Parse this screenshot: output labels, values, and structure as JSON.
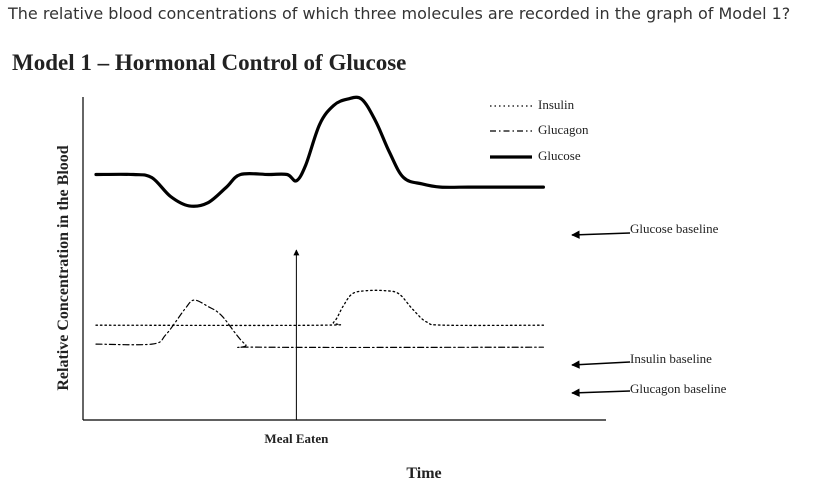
{
  "question": "The relative blood concentrations of which three molecules are recorded in the graph of Model 1?",
  "model_title": "Model 1 – Hormonal Control of Glucose",
  "chart_data": {
    "type": "line",
    "title": "",
    "xlabel": "Time",
    "ylabel": "Relative Concentration in the Blood",
    "legend_position": "top-right",
    "legend": [
      {
        "name": "Insulin",
        "style": "dotted"
      },
      {
        "name": "Glucagon",
        "style": "dash-dot"
      },
      {
        "name": "Glucose",
        "style": "solid-thick"
      }
    ],
    "annotations": {
      "meal": "Meal Eaten",
      "glucose_baseline": "Glucose baseline",
      "insulin_baseline": "Insulin baseline",
      "glucagon_baseline": "Glucagon baseline"
    },
    "xlim": [
      0,
      100
    ],
    "ylim": [
      0,
      100
    ],
    "meal_x": 43,
    "series": [
      {
        "name": "Glucose",
        "style": "solid-thick",
        "x": [
          0,
          8,
          12,
          16,
          20,
          24,
          28,
          31,
          37,
          41,
          43,
          45,
          48,
          51,
          54,
          57,
          60,
          63,
          66,
          70,
          74,
          80,
          86,
          96
        ],
        "y": [
          75,
          75,
          74,
          68,
          65,
          66,
          71,
          75,
          75,
          75,
          73,
          78,
          91,
          97,
          99,
          99,
          92,
          82,
          74,
          72,
          71,
          71,
          71,
          71
        ]
      },
      {
        "name": "Insulin",
        "style": "dotted",
        "x": [
          0,
          48,
          51,
          53,
          55,
          58,
          62,
          65,
          68,
          71,
          75,
          96
        ],
        "y": [
          27,
          27,
          28,
          33,
          37,
          38,
          38,
          37,
          32,
          28,
          27,
          27
        ]
      },
      {
        "name": "Glucagon",
        "style": "dash-dot",
        "x": [
          0,
          12,
          15,
          19,
          21,
          24,
          27,
          32,
          36,
          96
        ],
        "y": [
          21,
          21,
          24,
          32,
          35,
          33,
          30,
          21,
          20,
          20
        ]
      }
    ]
  }
}
